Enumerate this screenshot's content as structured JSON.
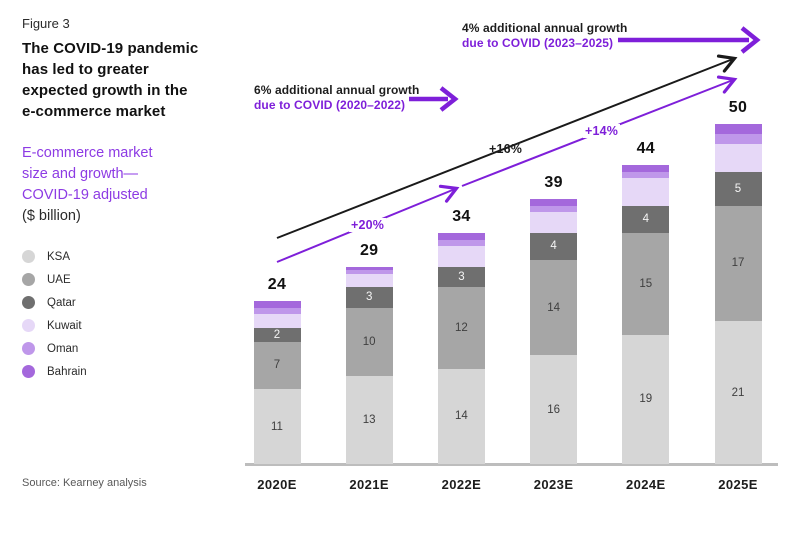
{
  "figure_label": "Figure 3",
  "title": "The COVID-19 pandemic\nhas led to greater\nexpected growth in the\ne-commerce market",
  "subtitle": "E-commerce market\nsize and growth—\nCOVID-19 adjusted",
  "unit_label": "($ billion)",
  "source": "Source: Kearney analysis",
  "annotations": {
    "growth_6pct": {
      "line1": "6% additional annual growth",
      "line2": "due to COVID (2020–2022)"
    },
    "growth_4pct": {
      "line1": "4% additional annual growth",
      "line2": "due to COVID (2023–2025)"
    },
    "cagr_labels": [
      {
        "text": "+20%",
        "color": "#7e1fd9"
      },
      {
        "text": "+16%",
        "color": "#1d1d1d"
      },
      {
        "text": "+14%",
        "color": "#7e1fd9"
      }
    ]
  },
  "colors": {
    "accent_purple": "#7e1fd9",
    "subtitle_purple": "#8d3be4",
    "arrow_black": "#1a1a1a",
    "axis_gray": "#bdbdbd"
  },
  "chart_data": {
    "type": "bar",
    "stacked": true,
    "title": "E-commerce market size and growth — COVID-19 adjusted ($ billion)",
    "categories": [
      "2020E",
      "2021E",
      "2022E",
      "2023E",
      "2024E",
      "2025E"
    ],
    "totals": [
      24,
      29,
      34,
      39,
      44,
      50
    ],
    "series": [
      {
        "name": "KSA",
        "color": "#d6d6d6",
        "values": [
          11,
          13,
          14,
          16,
          19,
          21
        ],
        "labels_visible": true,
        "label_color": "#3f3f3f"
      },
      {
        "name": "UAE",
        "color": "#a6a6a6",
        "values": [
          7,
          10,
          12,
          14,
          15,
          17
        ],
        "labels_visible": true,
        "label_color": "#3f3f3f"
      },
      {
        "name": "Qatar",
        "color": "#6f6f6f",
        "values": [
          2,
          3,
          3,
          4,
          4,
          5
        ],
        "labels_visible": true,
        "label_color": "#f5f5f5"
      },
      {
        "name": "Kuwait",
        "color": "#e6d8f7",
        "values": [
          2,
          2,
          3,
          3,
          4,
          4
        ],
        "labels_visible": false,
        "label_color": "#3f3f3f"
      },
      {
        "name": "Oman",
        "color": "#bf97ea",
        "values": [
          1,
          0.5,
          1,
          1,
          1,
          1.5
        ],
        "labels_visible": false,
        "label_color": "#3f3f3f"
      },
      {
        "name": "Bahrain",
        "color": "#a468dc",
        "values": [
          1,
          0.5,
          1,
          1,
          1,
          1.5
        ],
        "labels_visible": false,
        "label_color": "#3f3f3f"
      }
    ],
    "legend_position": "left",
    "grid": false,
    "value_labels_on_totals": true
  }
}
